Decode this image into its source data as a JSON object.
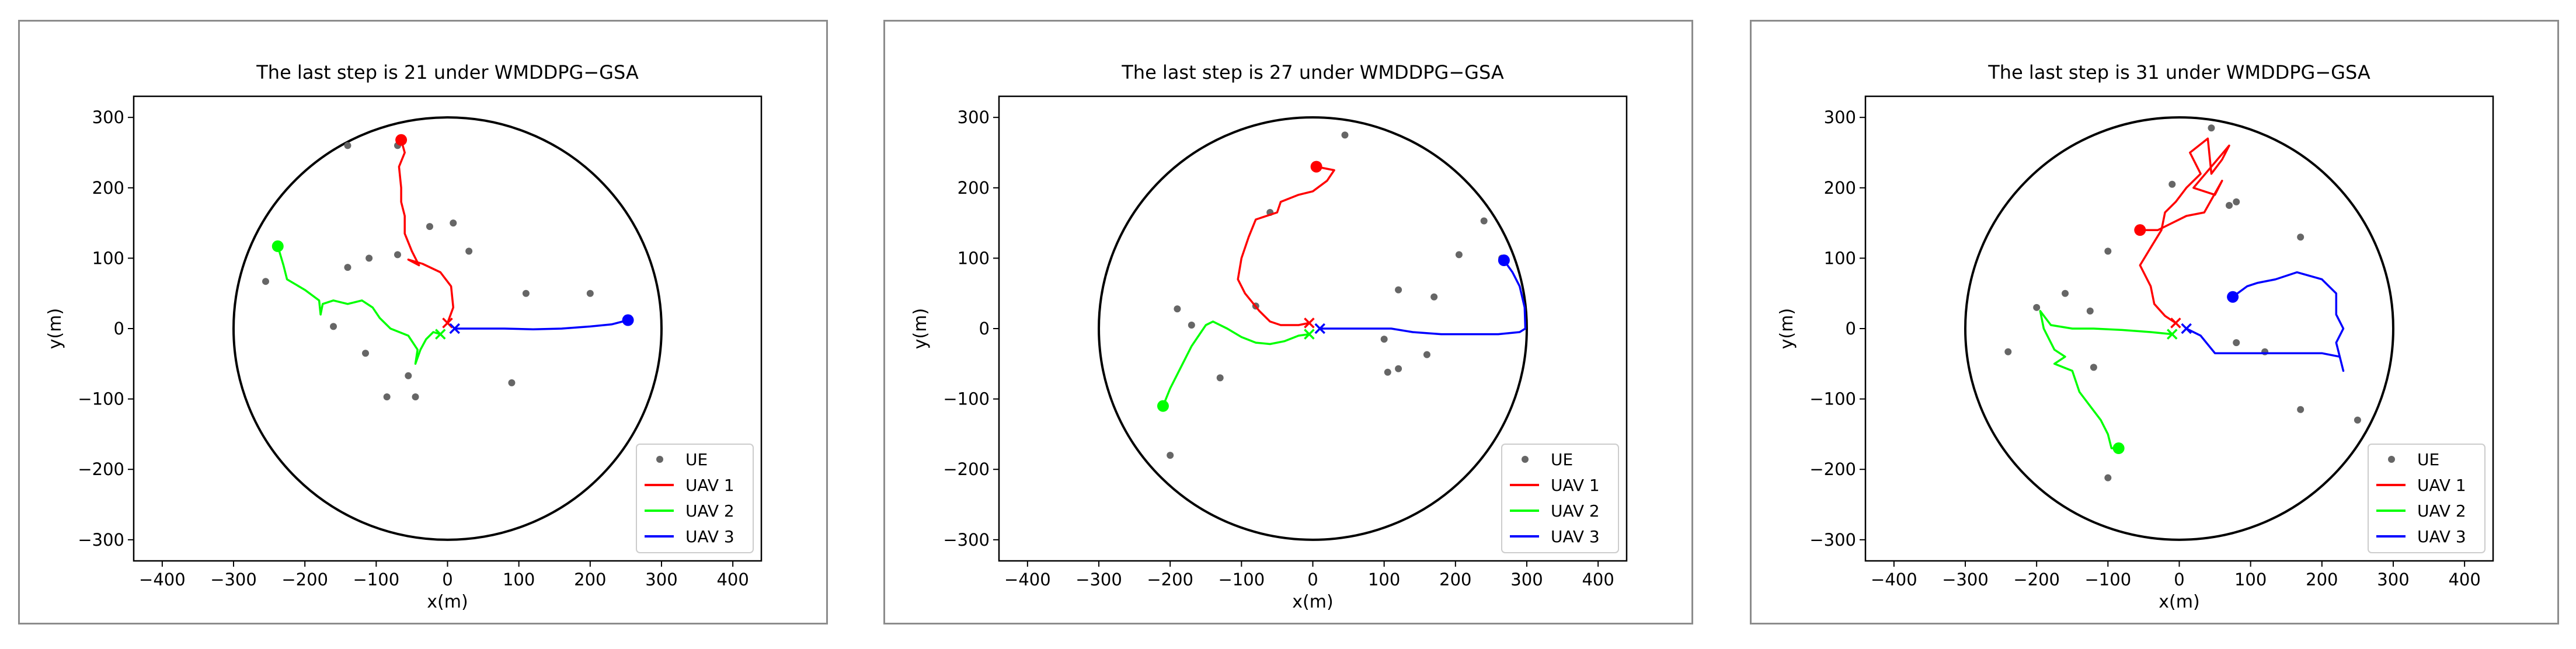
{
  "chart_data": [
    {
      "type": "line",
      "title": "The last step is 21 under WMDDPG−GSA",
      "xlabel": "x(m)",
      "ylabel": "y(m)",
      "xlim": [
        -440,
        440
      ],
      "ylim": [
        -330,
        330
      ],
      "xticks": [
        -400,
        -300,
        -200,
        -100,
        0,
        100,
        200,
        300,
        400
      ],
      "yticks": [
        -300,
        -200,
        -100,
        0,
        100,
        200,
        300
      ],
      "xtick_labels": [
        "−400",
        "−300",
        "−200",
        "−100",
        "0",
        "100",
        "200",
        "300",
        "400"
      ],
      "ytick_labels": [
        "−300",
        "−200",
        "−100",
        "0",
        "100",
        "200",
        "300"
      ],
      "boundary_radius": 300,
      "legend": {
        "location": "lower right",
        "entries": [
          "UE",
          "UAV 1",
          "UAV 2",
          "UAV 3"
        ]
      },
      "ue_points": [
        [
          -140,
          260
        ],
        [
          -70,
          260
        ],
        [
          -25,
          145
        ],
        [
          8,
          150
        ],
        [
          30,
          110
        ],
        [
          -70,
          105
        ],
        [
          -110,
          100
        ],
        [
          -140,
          87
        ],
        [
          -255,
          67
        ],
        [
          -160,
          3
        ],
        [
          -115,
          -35
        ],
        [
          -55,
          -67
        ],
        [
          -85,
          -97
        ],
        [
          -45,
          -97
        ],
        [
          110,
          50
        ],
        [
          200,
          50
        ],
        [
          90,
          -77
        ]
      ],
      "series": [
        {
          "name": "UAV 1",
          "color": "#ff0000",
          "end": [
            -65,
            268
          ],
          "start": [
            0,
            8
          ],
          "points": [
            [
              0,
              8
            ],
            [
              8,
              30
            ],
            [
              5,
              60
            ],
            [
              -10,
              80
            ],
            [
              -35,
              92
            ],
            [
              -55,
              98
            ],
            [
              -40,
              90
            ],
            [
              -50,
              110
            ],
            [
              -60,
              135
            ],
            [
              -60,
              160
            ],
            [
              -65,
              180
            ],
            [
              -65,
              200
            ],
            [
              -68,
              230
            ],
            [
              -60,
              250
            ],
            [
              -65,
              268
            ]
          ]
        },
        {
          "name": "UAV 2",
          "color": "#00ff00",
          "end": [
            -238,
            117
          ],
          "start": [
            -10,
            -8
          ],
          "points": [
            [
              -10,
              -8
            ],
            [
              -20,
              -5
            ],
            [
              -30,
              -15
            ],
            [
              -38,
              -30
            ],
            [
              -45,
              -50
            ],
            [
              -42,
              -30
            ],
            [
              -55,
              -10
            ],
            [
              -80,
              0
            ],
            [
              -95,
              15
            ],
            [
              -105,
              30
            ],
            [
              -120,
              40
            ],
            [
              -140,
              35
            ],
            [
              -160,
              40
            ],
            [
              -175,
              35
            ],
            [
              -178,
              20
            ],
            [
              -180,
              40
            ],
            [
              -200,
              55
            ],
            [
              -225,
              70
            ],
            [
              -230,
              90
            ],
            [
              -238,
              117
            ]
          ]
        },
        {
          "name": "UAV 3",
          "color": "#0000ff",
          "end": [
            253,
            12
          ],
          "start": [
            10,
            0
          ],
          "points": [
            [
              10,
              0
            ],
            [
              40,
              0
            ],
            [
              80,
              0
            ],
            [
              120,
              -1
            ],
            [
              160,
              0
            ],
            [
              200,
              3
            ],
            [
              230,
              6
            ],
            [
              253,
              12
            ]
          ]
        }
      ]
    },
    {
      "type": "line",
      "title": "The last step is 27 under WMDDPG−GSA",
      "xlabel": "x(m)",
      "ylabel": "y(m)",
      "xlim": [
        -440,
        440
      ],
      "ylim": [
        -330,
        330
      ],
      "xticks": [
        -400,
        -300,
        -200,
        -100,
        0,
        100,
        200,
        300,
        400
      ],
      "yticks": [
        -300,
        -200,
        -100,
        0,
        100,
        200,
        300
      ],
      "xtick_labels": [
        "−400",
        "−300",
        "−200",
        "−100",
        "0",
        "100",
        "200",
        "300",
        "400"
      ],
      "ytick_labels": [
        "−300",
        "−200",
        "−100",
        "0",
        "100",
        "200",
        "300"
      ],
      "boundary_radius": 300,
      "legend": {
        "location": "lower right",
        "entries": [
          "UE",
          "UAV 1",
          "UAV 2",
          "UAV 3"
        ]
      },
      "ue_points": [
        [
          45,
          275
        ],
        [
          -60,
          165
        ],
        [
          -80,
          32
        ],
        [
          -190,
          28
        ],
        [
          -170,
          5
        ],
        [
          -130,
          -70
        ],
        [
          -200,
          -180
        ],
        [
          100,
          -15
        ],
        [
          105,
          -62
        ],
        [
          120,
          -57
        ],
        [
          160,
          -37
        ],
        [
          170,
          45
        ],
        [
          120,
          55
        ],
        [
          205,
          105
        ],
        [
          240,
          153
        ],
        [
          265,
          100
        ]
      ],
      "series": [
        {
          "name": "UAV 1",
          "color": "#ff0000",
          "end": [
            5,
            230
          ],
          "start": [
            -5,
            8
          ],
          "points": [
            [
              -5,
              8
            ],
            [
              -20,
              5
            ],
            [
              -45,
              5
            ],
            [
              -60,
              10
            ],
            [
              -75,
              25
            ],
            [
              -95,
              50
            ],
            [
              -105,
              70
            ],
            [
              -100,
              100
            ],
            [
              -90,
              130
            ],
            [
              -80,
              155
            ],
            [
              -50,
              165
            ],
            [
              -45,
              180
            ],
            [
              -20,
              190
            ],
            [
              0,
              195
            ],
            [
              20,
              210
            ],
            [
              30,
              225
            ],
            [
              5,
              230
            ]
          ]
        },
        {
          "name": "UAV 2",
          "color": "#00ff00",
          "end": [
            -210,
            -110
          ],
          "start": [
            -5,
            -8
          ],
          "points": [
            [
              -5,
              -8
            ],
            [
              -20,
              -10
            ],
            [
              -40,
              -18
            ],
            [
              -60,
              -22
            ],
            [
              -80,
              -20
            ],
            [
              -100,
              -12
            ],
            [
              -120,
              0
            ],
            [
              -140,
              10
            ],
            [
              -150,
              5
            ],
            [
              -160,
              -10
            ],
            [
              -170,
              -25
            ],
            [
              -185,
              -55
            ],
            [
              -200,
              -85
            ],
            [
              -210,
              -110
            ]
          ]
        },
        {
          "name": "UAV 3",
          "color": "#0000ff",
          "end": [
            268,
            97
          ],
          "start": [
            10,
            0
          ],
          "points": [
            [
              10,
              0
            ],
            [
              60,
              0
            ],
            [
              110,
              0
            ],
            [
              140,
              -5
            ],
            [
              180,
              -8
            ],
            [
              220,
              -8
            ],
            [
              260,
              -8
            ],
            [
              290,
              -5
            ],
            [
              298,
              0
            ],
            [
              297,
              30
            ],
            [
              290,
              60
            ],
            [
              280,
              80
            ],
            [
              268,
              97
            ]
          ]
        }
      ]
    },
    {
      "type": "line",
      "title": "The last step is 31 under WMDDPG−GSA",
      "xlabel": "x(m)",
      "ylabel": "y(m)",
      "xlim": [
        -440,
        440
      ],
      "ylim": [
        -330,
        330
      ],
      "xticks": [
        -400,
        -300,
        -200,
        -100,
        0,
        100,
        200,
        300,
        400
      ],
      "yticks": [
        -300,
        -200,
        -100,
        0,
        100,
        200,
        300
      ],
      "xtick_labels": [
        "−400",
        "−300",
        "−200",
        "−100",
        "0",
        "100",
        "200",
        "300",
        "400"
      ],
      "ytick_labels": [
        "−300",
        "−200",
        "−100",
        "0",
        "100",
        "200",
        "300"
      ],
      "boundary_radius": 300,
      "legend": {
        "location": "lower right",
        "entries": [
          "UE",
          "UAV 1",
          "UAV 2",
          "UAV 3"
        ]
      },
      "ue_points": [
        [
          45,
          285
        ],
        [
          -10,
          205
        ],
        [
          70,
          175
        ],
        [
          80,
          180
        ],
        [
          -100,
          110
        ],
        [
          -125,
          25
        ],
        [
          -160,
          50
        ],
        [
          -200,
          30
        ],
        [
          -240,
          -33
        ],
        [
          -120,
          -55
        ],
        [
          -100,
          -212
        ],
        [
          80,
          -20
        ],
        [
          120,
          -33
        ],
        [
          170,
          130
        ],
        [
          170,
          -115
        ],
        [
          250,
          -130
        ]
      ],
      "series": [
        {
          "name": "UAV 1",
          "color": "#ff0000",
          "end": [
            -55,
            140
          ],
          "start": [
            -5,
            8
          ],
          "points": [
            [
              -5,
              8
            ],
            [
              -20,
              18
            ],
            [
              -35,
              35
            ],
            [
              -40,
              60
            ],
            [
              -55,
              90
            ],
            [
              -40,
              115
            ],
            [
              -25,
              140
            ],
            [
              -20,
              165
            ],
            [
              -5,
              180
            ],
            [
              10,
              200
            ],
            [
              30,
              220
            ],
            [
              15,
              250
            ],
            [
              40,
              270
            ],
            [
              45,
              220
            ],
            [
              60,
              240
            ],
            [
              70,
              260
            ],
            [
              20,
              200
            ],
            [
              50,
              190
            ],
            [
              60,
              210
            ],
            [
              35,
              165
            ],
            [
              10,
              160
            ],
            [
              -10,
              150
            ],
            [
              -30,
              140
            ],
            [
              -55,
              140
            ]
          ]
        },
        {
          "name": "UAV 2",
          "color": "#00ff00",
          "end": [
            -85,
            -170
          ],
          "start": [
            -10,
            -8
          ],
          "points": [
            [
              -10,
              -8
            ],
            [
              -40,
              -5
            ],
            [
              -80,
              -2
            ],
            [
              -120,
              0
            ],
            [
              -150,
              0
            ],
            [
              -180,
              5
            ],
            [
              -195,
              25
            ],
            [
              -190,
              0
            ],
            [
              -175,
              -30
            ],
            [
              -160,
              -40
            ],
            [
              -175,
              -50
            ],
            [
              -150,
              -60
            ],
            [
              -140,
              -90
            ],
            [
              -125,
              -110
            ],
            [
              -110,
              -130
            ],
            [
              -100,
              -150
            ],
            [
              -95,
              -170
            ],
            [
              -85,
              -170
            ]
          ]
        },
        {
          "name": "UAV 3",
          "color": "#0000ff",
          "end": [
            75,
            45
          ],
          "start": [
            10,
            0
          ],
          "points": [
            [
              10,
              0
            ],
            [
              30,
              -10
            ],
            [
              50,
              -35
            ],
            [
              100,
              -35
            ],
            [
              150,
              -35
            ],
            [
              200,
              -35
            ],
            [
              225,
              -40
            ],
            [
              230,
              -60
            ],
            [
              220,
              -20
            ],
            [
              230,
              0
            ],
            [
              220,
              20
            ],
            [
              220,
              50
            ],
            [
              200,
              70
            ],
            [
              165,
              80
            ],
            [
              135,
              70
            ],
            [
              110,
              65
            ],
            [
              95,
              60
            ],
            [
              75,
              45
            ]
          ]
        }
      ]
    }
  ]
}
